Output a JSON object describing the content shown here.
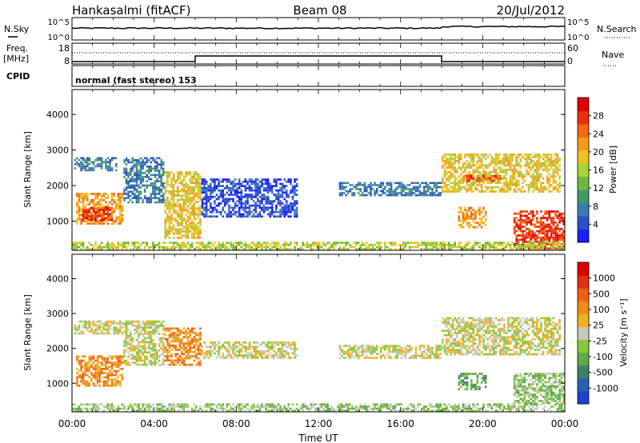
{
  "header": {
    "station": "Hankasalmi (fitACF)",
    "beam": "Beam 08",
    "date": "20/Jul/2012"
  },
  "strips": {
    "nsky_label": "N.Sky",
    "nsky_tick_top": "10^5",
    "nsky_tick_bottom": "10^0",
    "nsearch_tick_top": "10^5",
    "nsearch_tick_bottom": "10^0",
    "nsearch_label": "N.Search",
    "freq_label_1": "Freq.",
    "freq_label_2": "[MHz]",
    "freq_tick_top": "18",
    "freq_tick_bottom": "8",
    "nave_tick_top": "60",
    "nave_tick_bottom": "0",
    "nave_label": "Nave",
    "cpid_label": "CPID",
    "mode_text": "normal (fast stereo) 153"
  },
  "chart_data": [
    {
      "type": "heatmap",
      "panel": "power",
      "ylabel": "Slant Range [km]",
      "ylim": [
        180,
        4700
      ],
      "yticks": [
        "1000",
        "2000",
        "3000",
        "4000"
      ],
      "xlim": [
        "00:00",
        "24:00"
      ],
      "colorbar_label": "Power [dB]",
      "colorbar_ticks": [
        "4",
        "8",
        "12",
        "16",
        "20",
        "24",
        "28"
      ],
      "colorbar_colors": [
        "#1c1cff",
        "#2a50c8",
        "#3d7ab0",
        "#3f9a6a",
        "#6cb83b",
        "#aad23a",
        "#f0c220",
        "#f89a18",
        "#f06a10",
        "#ea3010",
        "#e00000"
      ],
      "regions": [
        {
          "t0": 0.1,
          "t1": 2.2,
          "r0": 2400,
          "r1": 2800,
          "level": 2
        },
        {
          "t0": 0.2,
          "t1": 2.5,
          "r0": 900,
          "r1": 1800,
          "level": 7
        },
        {
          "t0": 0.5,
          "t1": 2.0,
          "r0": 1000,
          "r1": 1400,
          "level": 9
        },
        {
          "t0": 2.5,
          "t1": 4.5,
          "r0": 1500,
          "r1": 2800,
          "level": 2
        },
        {
          "t0": 4.5,
          "t1": 6.3,
          "r0": 500,
          "r1": 2400,
          "level": 6
        },
        {
          "t0": 6.3,
          "t1": 11.0,
          "r0": 1100,
          "r1": 2200,
          "level": 1
        },
        {
          "t0": 13.0,
          "t1": 18.0,
          "r0": 1700,
          "r1": 2100,
          "level": 2
        },
        {
          "t0": 18.0,
          "t1": 23.8,
          "r0": 1800,
          "r1": 2900,
          "level": 6
        },
        {
          "t0": 19.0,
          "t1": 21.0,
          "r0": 2100,
          "r1": 2300,
          "level": 9
        },
        {
          "t0": 18.8,
          "t1": 20.2,
          "r0": 800,
          "r1": 1400,
          "level": 7
        },
        {
          "t0": 21.5,
          "t1": 24.0,
          "r0": 200,
          "r1": 1300,
          "level": 9
        },
        {
          "t0": 0.0,
          "t1": 24.0,
          "r0": 180,
          "r1": 420,
          "level": 5
        }
      ]
    },
    {
      "type": "heatmap",
      "panel": "velocity",
      "ylabel": "Slant Range [km]",
      "ylim": [
        180,
        4700
      ],
      "yticks": [
        "1000",
        "2000",
        "3000",
        "4000"
      ],
      "xlim": [
        "00:00",
        "24:00"
      ],
      "xticks": [
        "00:00",
        "04:00",
        "08:00",
        "12:00",
        "16:00",
        "20:00",
        "00:00"
      ],
      "xlabel": "Time UT",
      "colorbar_label": "Velocity [m s⁻¹]",
      "colorbar_ticks": [
        "1000",
        "500",
        "100",
        "25",
        "-25",
        "-100",
        "-500",
        "-1000"
      ],
      "colorbar_colors": [
        "#1f3fd0",
        "#2a5fb0",
        "#3f7f6a",
        "#5fa84a",
        "#86c83a",
        "#c8c8c0",
        "#f0b020",
        "#f08a18",
        "#f06010",
        "#e03010",
        "#e00000"
      ],
      "regions": [
        {
          "t0": 0.1,
          "t1": 2.5,
          "r0": 2400,
          "r1": 2800,
          "level": 5
        },
        {
          "t0": 0.2,
          "t1": 2.5,
          "r0": 900,
          "r1": 1800,
          "level": 7
        },
        {
          "t0": 2.5,
          "t1": 4.5,
          "r0": 1500,
          "r1": 2800,
          "level": 5
        },
        {
          "t0": 4.5,
          "t1": 6.3,
          "r0": 1500,
          "r1": 2600,
          "level": 7
        },
        {
          "t0": 6.3,
          "t1": 11.0,
          "r0": 1700,
          "r1": 2200,
          "level": 5
        },
        {
          "t0": 13.0,
          "t1": 18.0,
          "r0": 1700,
          "r1": 2100,
          "level": 5
        },
        {
          "t0": 18.0,
          "t1": 23.8,
          "r0": 1800,
          "r1": 2900,
          "level": 5
        },
        {
          "t0": 18.8,
          "t1": 20.2,
          "r0": 800,
          "r1": 1300,
          "level": 3
        },
        {
          "t0": 21.5,
          "t1": 24.0,
          "r0": 400,
          "r1": 1300,
          "level": 4
        },
        {
          "t0": 0.0,
          "t1": 24.0,
          "r0": 180,
          "r1": 420,
          "level": 4
        }
      ]
    }
  ]
}
